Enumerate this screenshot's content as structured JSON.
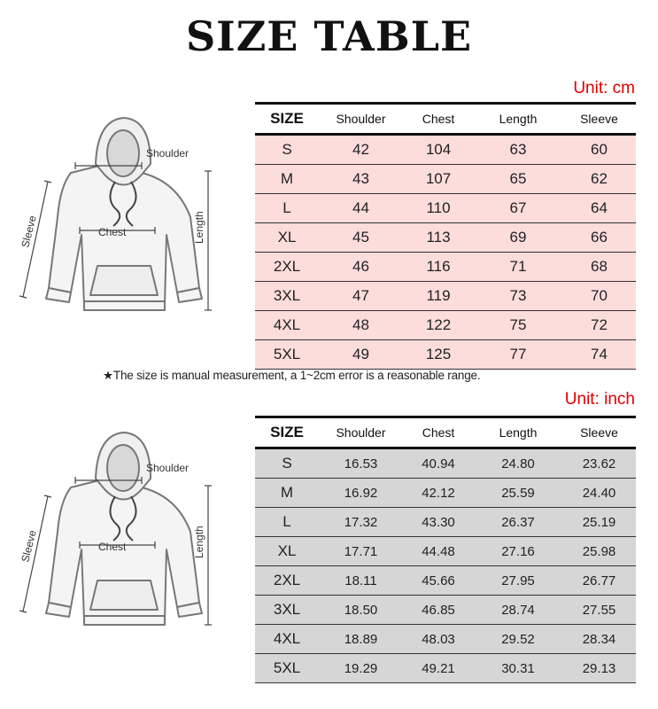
{
  "title": "SIZE TABLE",
  "figure_labels": {
    "shoulder": "Shoulder",
    "chest": "Chest",
    "length": "Length",
    "sleeve": "Sleeve"
  },
  "note": "★The size is manual measurement, a 1~2cm error is a reasonable range.",
  "columns": [
    "SIZE",
    "Shoulder",
    "Chest",
    "Length",
    "Sleeve"
  ],
  "colors": {
    "unit_text": "#e00000",
    "cm_row_bg": "#fddcdc",
    "inch_row_bg": "#d6d6d6"
  },
  "cm_table": {
    "unit": "Unit: cm",
    "rows": [
      [
        "S",
        "42",
        "104",
        "63",
        "60"
      ],
      [
        "M",
        "43",
        "107",
        "65",
        "62"
      ],
      [
        "L",
        "44",
        "110",
        "67",
        "64"
      ],
      [
        "XL",
        "45",
        "113",
        "69",
        "66"
      ],
      [
        "2XL",
        "46",
        "116",
        "71",
        "68"
      ],
      [
        "3XL",
        "47",
        "119",
        "73",
        "70"
      ],
      [
        "4XL",
        "48",
        "122",
        "75",
        "72"
      ],
      [
        "5XL",
        "49",
        "125",
        "77",
        "74"
      ]
    ]
  },
  "inch_table": {
    "unit": "Unit: inch",
    "rows": [
      [
        "S",
        "16.53",
        "40.94",
        "24.80",
        "23.62"
      ],
      [
        "M",
        "16.92",
        "42.12",
        "25.59",
        "24.40"
      ],
      [
        "L",
        "17.32",
        "43.30",
        "26.37",
        "25.19"
      ],
      [
        "XL",
        "17.71",
        "44.48",
        "27.16",
        "25.98"
      ],
      [
        "2XL",
        "18.11",
        "45.66",
        "27.95",
        "26.77"
      ],
      [
        "3XL",
        "18.50",
        "46.85",
        "28.74",
        "27.55"
      ],
      [
        "4XL",
        "18.89",
        "48.03",
        "29.52",
        "28.34"
      ],
      [
        "5XL",
        "19.29",
        "49.21",
        "30.31",
        "29.13"
      ]
    ]
  }
}
